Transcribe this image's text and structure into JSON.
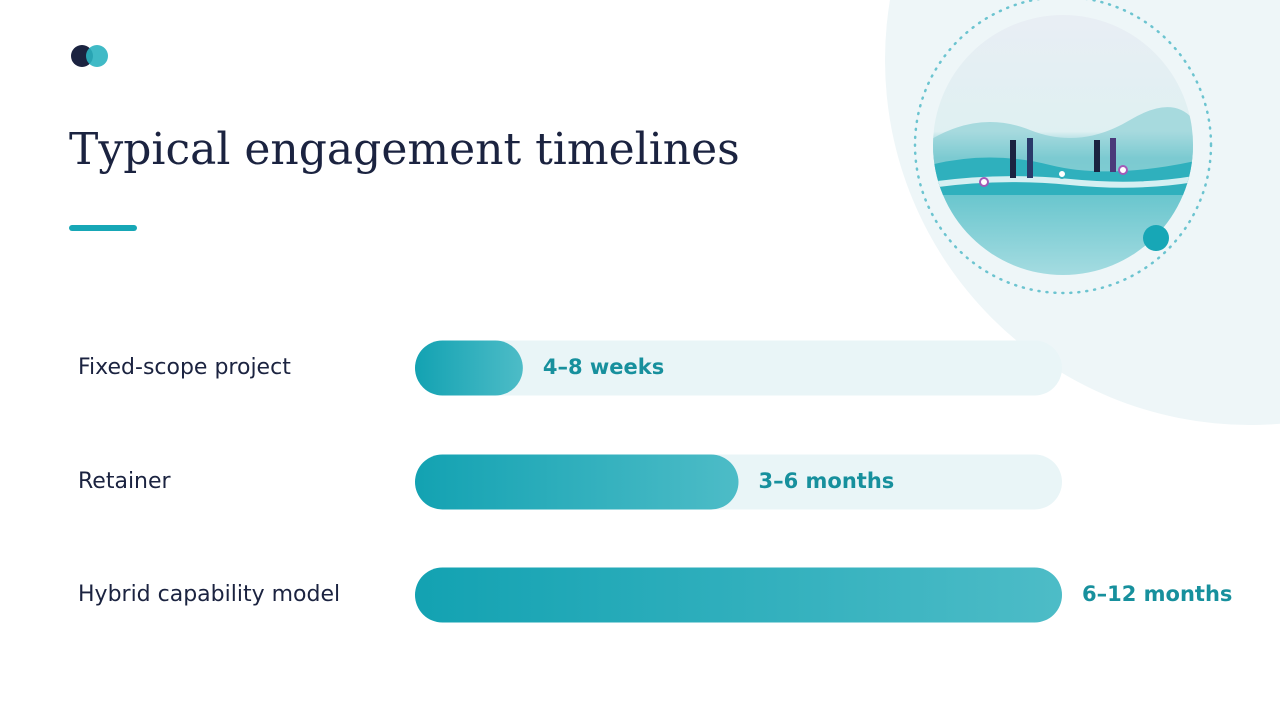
{
  "chart_data": {
    "type": "bar",
    "orientation": "horizontal",
    "title": "Typical engagement timelines",
    "categories": [
      "Fixed-scope project",
      "Retainer",
      "Hybrid capability model"
    ],
    "values": [
      2,
      6,
      12
    ],
    "value_labels": [
      "4–8 weeks",
      "3–6 months",
      "6–12 months"
    ],
    "xlim": [
      0,
      12
    ],
    "color": "#17a7b6"
  }
}
